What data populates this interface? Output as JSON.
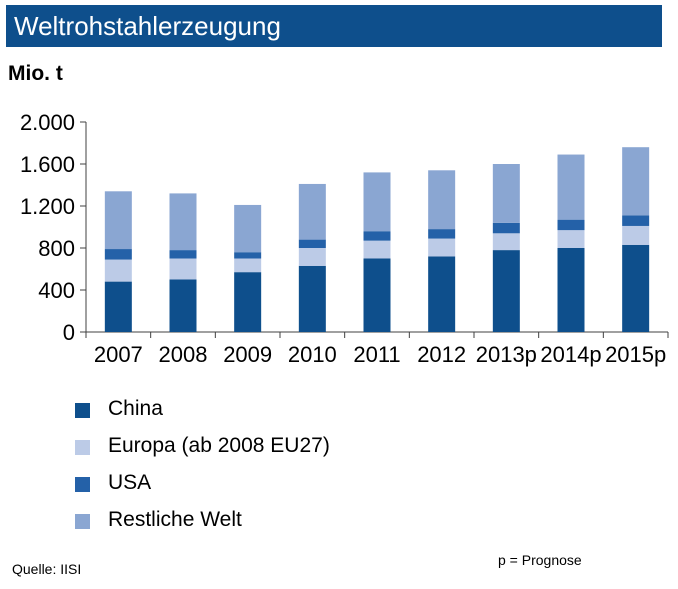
{
  "colors": {
    "title_bg": "#0e4f8c",
    "china": "#0e4f8c",
    "europe": "#bccbe7",
    "usa": "#2461a8",
    "rest": "#8aa6d2",
    "axis": "#404040"
  },
  "chart_data": {
    "type": "bar",
    "stacked": true,
    "title": "Weltrohstahlerzeugung",
    "ylabel": "Mio. t",
    "xlabel": "",
    "ylim": [
      0,
      2000
    ],
    "yticks": [
      0,
      400,
      800,
      1200,
      1600,
      2000
    ],
    "ytick_labels": [
      "0",
      "400",
      "800",
      "1.200",
      "1.600",
      "2.000"
    ],
    "categories": [
      "2007",
      "2008",
      "2009",
      "2010",
      "2011",
      "2012",
      "2013p",
      "2014p",
      "2015p"
    ],
    "grid": false,
    "legend_position": "bottom-left",
    "series": [
      {
        "name": "China",
        "color_key": "china",
        "values": [
          480,
          500,
          570,
          630,
          700,
          720,
          780,
          800,
          830
        ]
      },
      {
        "name": "Europa (ab 2008 EU27)",
        "color_key": "europe",
        "values": [
          210,
          200,
          130,
          170,
          170,
          170,
          160,
          170,
          180
        ]
      },
      {
        "name": "USA",
        "color_key": "usa",
        "values": [
          100,
          80,
          60,
          80,
          90,
          90,
          100,
          100,
          100
        ]
      },
      {
        "name": "Restliche Welt",
        "color_key": "rest",
        "values": [
          550,
          540,
          450,
          530,
          560,
          560,
          560,
          620,
          650
        ]
      }
    ],
    "source": "Quelle:  IISI",
    "note": "p = Prognose"
  }
}
